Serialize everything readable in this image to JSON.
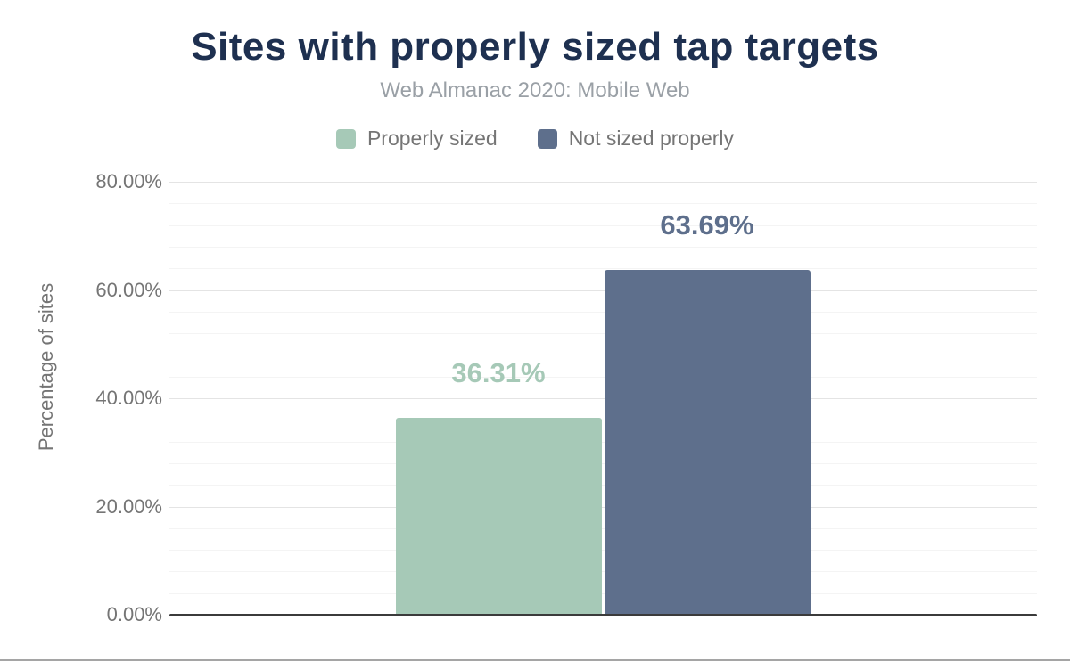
{
  "figure": {
    "background_color": "#ffffff",
    "bottom_border_color": "#a5a5a5"
  },
  "chart_data": {
    "type": "bar",
    "title": "Sites with properly sized tap targets",
    "subtitle": "Web Almanac 2020: Mobile Web",
    "xlabel": "",
    "ylabel": "Percentage of sites",
    "categories": [
      "Properly sized",
      "Not sized properly"
    ],
    "values": [
      36.31,
      63.69
    ],
    "value_labels": [
      "36.31%",
      "63.69%"
    ],
    "series_colors": [
      "#a6c9b7",
      "#5e6f8c"
    ],
    "legend_position": "top",
    "legend": [
      {
        "label": "Properly sized",
        "color": "#a6c9b7"
      },
      {
        "label": "Not sized properly",
        "color": "#5e6f8c"
      }
    ],
    "y_axis": {
      "min": 0,
      "max": 80,
      "major_tick_step": 20,
      "minor_gridline_step": 4,
      "tick_labels": [
        "0.00%",
        "20.00%",
        "40.00%",
        "60.00%",
        "80.00%"
      ]
    },
    "grid": true,
    "styles": {
      "title_color": "#1e3050",
      "subtitle_color": "#9aa0a6",
      "axis_text_color": "#757575",
      "gridline_major_color": "#e4e4e4",
      "gridline_minor_color": "#f4f4f4",
      "axis_line_color": "#3b3b3b"
    }
  }
}
